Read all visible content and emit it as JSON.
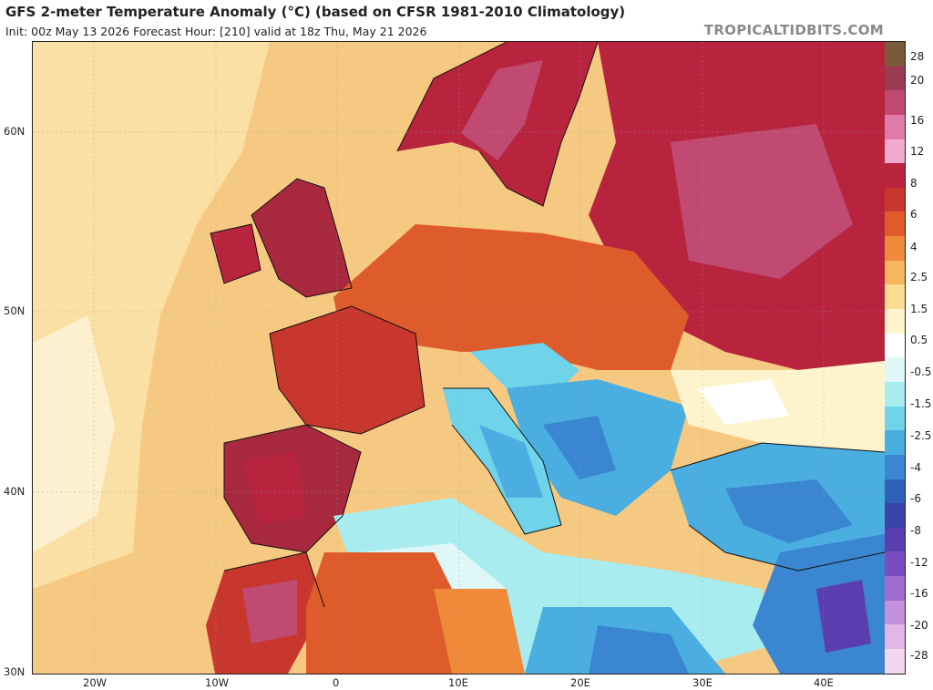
{
  "header": {
    "title": "GFS 2-meter Temperature Anomaly (°C) (based on CFSR 1981-2010 Climatology)",
    "init": "Init: 00z May 13 2026   Forecast Hour: [210]   valid at 18z Thu, May 21 2026",
    "site": "TROPICALTIDBITS.COM"
  },
  "axes": {
    "x_ticks": [
      "20W",
      "10W",
      "0",
      "10E",
      "20E",
      "30E",
      "40E"
    ],
    "y_ticks": [
      "60N",
      "50N",
      "40N",
      "30N"
    ]
  },
  "colorbar": {
    "labels": [
      "28",
      "20",
      "16",
      "12",
      "8",
      "6",
      "4",
      "2.5",
      "1.5",
      "0.5",
      "-0.5",
      "-1.5",
      "-2.5",
      "-4",
      "-6",
      "-8",
      "-12",
      "-16",
      "-20",
      "-28"
    ],
    "colors": [
      "#7a5a3c",
      "#9c3a52",
      "#c14a72",
      "#e07aa8",
      "#f2a9cd",
      "#b8243e",
      "#c8372e",
      "#de5b2b",
      "#ef8a3a",
      "#f7b65e",
      "#fbdc92",
      "#fdf3cc",
      "#ffffff",
      "#dff7f7",
      "#a8ecf0",
      "#6fd3ea",
      "#4aaee0",
      "#3a86d0",
      "#2f62b8",
      "#3a44a8",
      "#5a3eb0",
      "#7a4cc0",
      "#a06cd0",
      "#c490dc",
      "#e2b6e6",
      "#f3d6ef"
    ]
  }
}
